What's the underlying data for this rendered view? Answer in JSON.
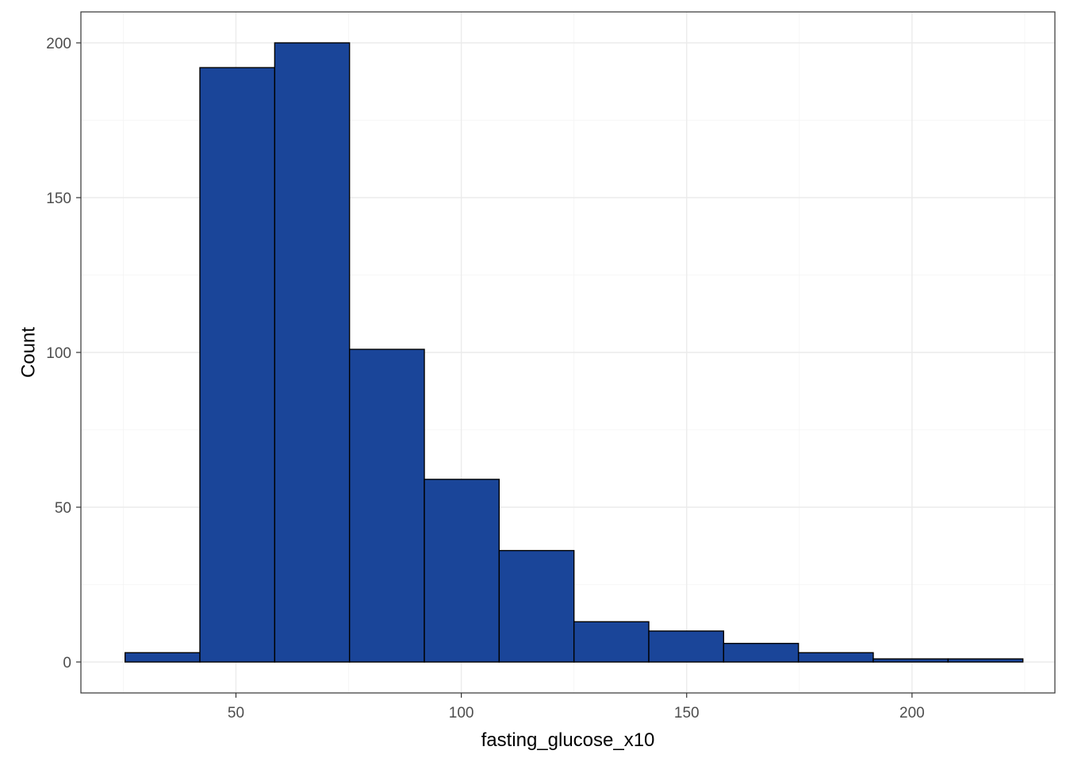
{
  "chart_data": {
    "type": "bar",
    "subtype": "histogram",
    "xlabel": "fasting_glucose_x10",
    "ylabel": "Count",
    "xlim": [
      15.6,
      231.7
    ],
    "ylim": [
      -10,
      210
    ],
    "x_ticks": [
      50,
      100,
      150,
      200
    ],
    "y_ticks": [
      0,
      50,
      100,
      150,
      200
    ],
    "x_tick_labels": [
      "50",
      "100",
      "150",
      "200"
    ],
    "y_tick_labels": [
      "0",
      "50",
      "100",
      "150",
      "200"
    ],
    "bins": [
      {
        "x0": 25.4,
        "x1": 42.0,
        "count": 3
      },
      {
        "x0": 42.0,
        "x1": 58.6,
        "count": 192
      },
      {
        "x0": 58.6,
        "x1": 75.2,
        "count": 200
      },
      {
        "x0": 75.2,
        "x1": 91.8,
        "count": 101
      },
      {
        "x0": 91.8,
        "x1": 108.4,
        "count": 59
      },
      {
        "x0": 108.4,
        "x1": 125.0,
        "count": 36
      },
      {
        "x0": 125.0,
        "x1": 141.6,
        "count": 13
      },
      {
        "x0": 141.6,
        "x1": 158.2,
        "count": 10
      },
      {
        "x0": 158.2,
        "x1": 174.8,
        "count": 6
      },
      {
        "x0": 174.8,
        "x1": 191.4,
        "count": 3
      },
      {
        "x0": 191.4,
        "x1": 208.0,
        "count": 1
      },
      {
        "x0": 208.0,
        "x1": 224.6,
        "count": 1
      }
    ],
    "grid": true,
    "legend": "none",
    "colors": {
      "bar_fill": "#1a4599",
      "bar_stroke": "#000000",
      "panel_background": "#ffffff"
    }
  }
}
